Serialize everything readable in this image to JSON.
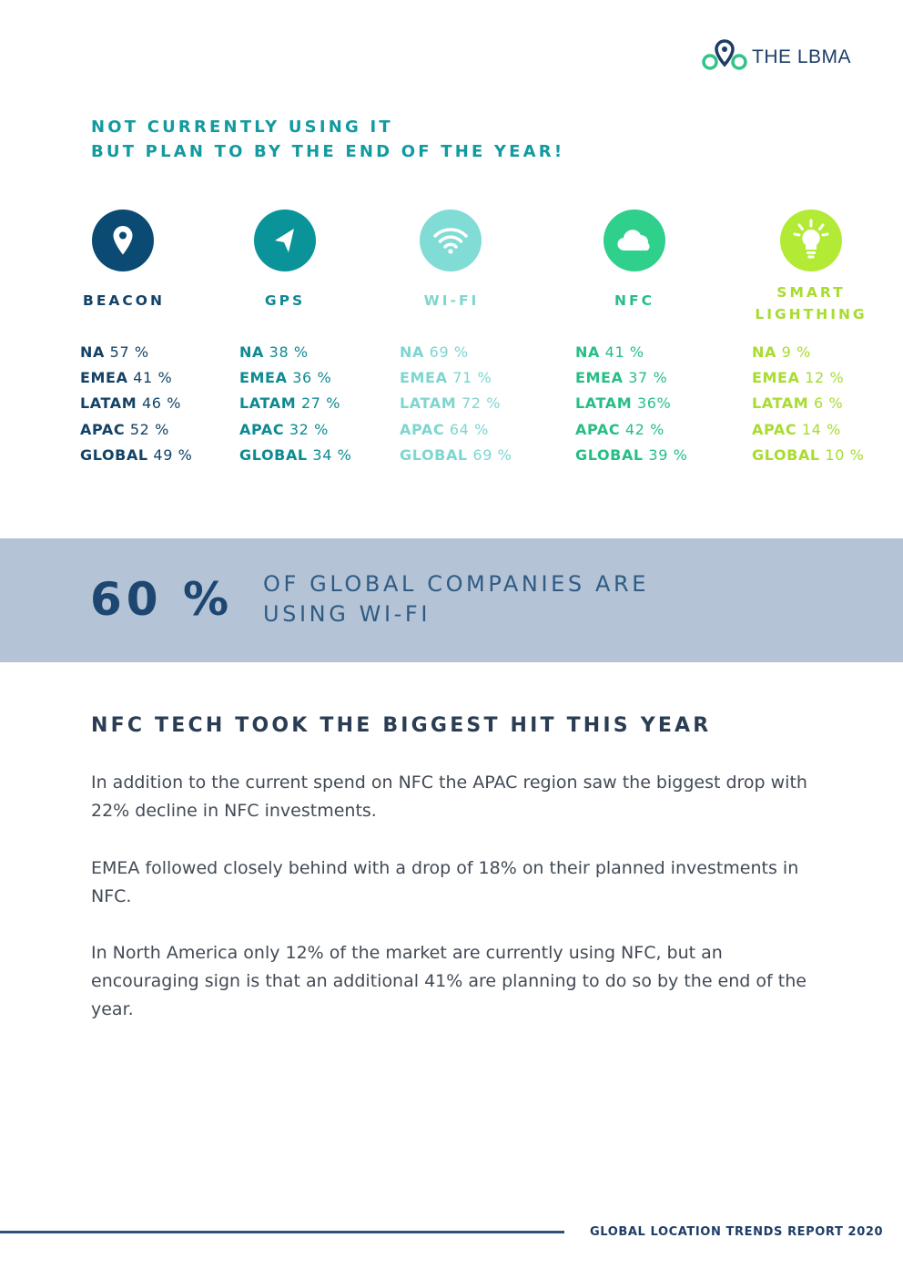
{
  "logo": {
    "text_plain": "THE ",
    "text_bold": "LBMA"
  },
  "heading": {
    "line1": "NOT CURRENTLY USING IT",
    "line2": "BUT PLAN TO BY THE END OF THE YEAR!"
  },
  "technologies": [
    {
      "label": "BEACON",
      "icon": "location-pin-icon",
      "color": "#0a4a73",
      "text_color": "#134266",
      "stats": [
        {
          "k": "NA",
          "v": "57 %"
        },
        {
          "k": "EMEA",
          "v": "41 %"
        },
        {
          "k": "LATAM",
          "v": "46 %"
        },
        {
          "k": "APAC",
          "v": "52 %"
        },
        {
          "k": "GLOBAL",
          "v": "49 %"
        }
      ]
    },
    {
      "label": "GPS",
      "icon": "navigation-arrow-icon",
      "color": "#0a949a",
      "text_color": "#0e8a92",
      "stats": [
        {
          "k": "NA",
          "v": "38 %"
        },
        {
          "k": "EMEA",
          "v": "36 %"
        },
        {
          "k": "LATAM",
          "v": "27 %"
        },
        {
          "k": "APAC",
          "v": "32 %"
        },
        {
          "k": "GLOBAL",
          "v": "34 %"
        }
      ]
    },
    {
      "label": "WI-FI",
      "icon": "wifi-icon",
      "color": "#80dcd5",
      "text_color": "#7ed6d0",
      "stats": [
        {
          "k": "NA",
          "v": "69 %"
        },
        {
          "k": "EMEA",
          "v": "71 %"
        },
        {
          "k": "LATAM",
          "v": "72 %"
        },
        {
          "k": "APAC",
          "v": "64 %"
        },
        {
          "k": "GLOBAL",
          "v": "69 %"
        }
      ]
    },
    {
      "label": "NFC",
      "icon": "cloud-icon",
      "color": "#2fcf8c",
      "text_color": "#27be86",
      "stats": [
        {
          "k": "NA",
          "v": "41 %"
        },
        {
          "k": "EMEA",
          "v": "37 %"
        },
        {
          "k": "LATAM",
          "v": "36%"
        },
        {
          "k": "APAC",
          "v": "42 %"
        },
        {
          "k": "GLOBAL",
          "v": "39 %"
        }
      ]
    },
    {
      "label_line1": "SMART",
      "label_line2": "LIGHTHING",
      "icon": "lightbulb-icon",
      "color": "#b3ea35",
      "text_color": "#a8dc2f",
      "stats": [
        {
          "k": "NA",
          "v": "9 %"
        },
        {
          "k": "EMEA",
          "v": "12 %"
        },
        {
          "k": "LATAM",
          "v": "6 %"
        },
        {
          "k": "APAC",
          "v": "14 %"
        },
        {
          "k": "GLOBAL",
          "v": "10 %"
        }
      ]
    }
  ],
  "callout": {
    "value": "60 %",
    "line1": "OF GLOBAL COMPANIES ARE",
    "line2": "USING WI-FI"
  },
  "section": {
    "title": "NFC TECH TOOK THE BIGGEST HIT THIS YEAR",
    "p1": "In addition to the current spend on NFC the APAC region saw the biggest drop with 22% decline in NFC investments.",
    "p2": "EMEA followed closely behind with a drop of 18% on their planned investments in NFC.",
    "p3": "In North America only 12% of the market are currently using NFC, but an encouraging sign is that an additional 41% are planning to do so by the end of the year."
  },
  "footer": {
    "text": "GLOBAL LOCATION TRENDS REPORT 2020"
  }
}
